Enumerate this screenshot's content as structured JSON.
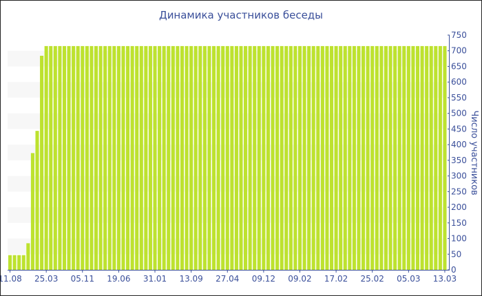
{
  "chart_data": {
    "type": "bar",
    "title": "Динамика участников беседы",
    "ylabel": "Число участников",
    "xlabel": "",
    "ylim": [
      0,
      750
    ],
    "yticks": [
      0,
      50,
      100,
      150,
      200,
      250,
      300,
      350,
      400,
      450,
      500,
      550,
      600,
      650,
      700,
      750
    ],
    "y_axis_side": "right",
    "grid": "alternating horizontal bands",
    "xtick_labels": [
      "11.08",
      "25.03",
      "05.11",
      "19.06",
      "31.01",
      "13.09",
      "27.04",
      "09.12",
      "09.02",
      "17.02",
      "25.02",
      "05.03",
      "13.03"
    ],
    "xtick_every_n_bars": 8,
    "values": [
      47,
      47,
      47,
      47,
      85,
      373,
      444,
      684,
      715,
      715,
      715,
      715,
      715,
      715,
      715,
      715,
      715,
      715,
      715,
      715,
      715,
      715,
      715,
      715,
      715,
      715,
      715,
      715,
      715,
      715,
      715,
      715,
      715,
      715,
      715,
      715,
      715,
      715,
      715,
      715,
      715,
      715,
      715,
      715,
      715,
      715,
      715,
      715,
      715,
      715,
      715,
      715,
      715,
      715,
      715,
      715,
      715,
      715,
      715,
      715,
      715,
      715,
      715,
      715,
      715,
      715,
      715,
      715,
      715,
      715,
      715,
      715,
      715,
      715,
      715,
      715,
      715,
      715,
      715,
      715,
      715,
      715,
      715,
      715,
      715,
      715,
      715,
      715,
      715,
      715,
      715,
      715,
      715,
      715,
      715,
      715,
      715
    ],
    "colors": {
      "bar": "#bde22f",
      "axis": "#3a4f9a",
      "band": "#f7f7f7"
    }
  }
}
